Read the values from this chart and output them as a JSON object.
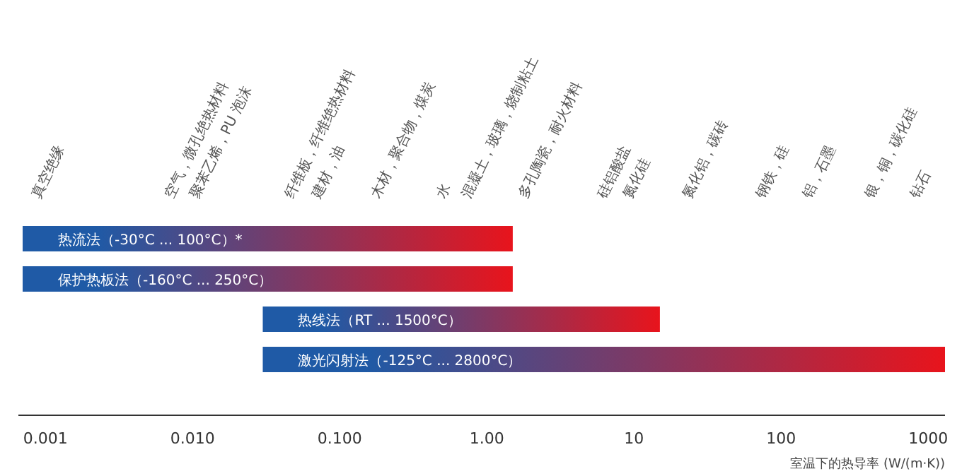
{
  "chart_data": {
    "type": "bar",
    "orientation": "horizontal",
    "log": "x",
    "xlabel": "室温下的热导率 (W/(m·K))",
    "categories": [
      "热流法（-30°C ... 100°C）*",
      "保护热板法（-160°C ... 250°C）",
      "热线法（RT ... 1500°C）",
      "激光闪射法（-125°C ... 2800°C）"
    ],
    "base": [
      0.0007,
      0.0007,
      0.03,
      0.03
    ],
    "values": [
      1.4993,
      1.4993,
      14.97,
      1299.97
    ],
    "color": "#1f5aa6",
    "xlim": [
      0.0007,
      1300
    ],
    "xticks": [
      {
        "value": 0.001,
        "label": "0.001"
      },
      {
        "value": 0.01,
        "label": "0.010"
      },
      {
        "value": 0.1,
        "label": "0.100"
      },
      {
        "value": 1,
        "label": "1.00"
      },
      10,
      100,
      1000
    ],
    "annotations": [
      "真空绝缘",
      "空气，微孔绝热材料",
      "聚苯乙烯，PU 泡沫",
      "纤维板，纤维绝热材料",
      "建材，油",
      "木材，聚合物，煤炭",
      "水",
      "混凝土，玻璃，烧制粘土",
      "多孔陶瓷，耐火材料",
      "硅铝酸盐",
      "氮化硅",
      "氮化铝，碳砖",
      "钢铁，硅",
      "铝，石墨",
      "银，铜，碳化硅",
      "钻石"
    ]
  }
}
